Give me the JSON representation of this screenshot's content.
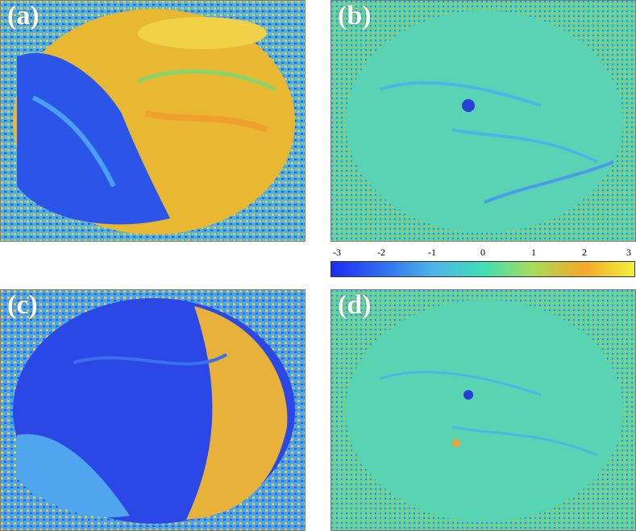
{
  "panels": {
    "a": {
      "label": "(a)",
      "theme": "mixed-high"
    },
    "b": {
      "label": "(b)",
      "theme": "flat"
    },
    "c": {
      "label": "(c)",
      "theme": "mixed-low"
    },
    "d": {
      "label": "(d)",
      "theme": "flat"
    }
  },
  "colorbar": {
    "min": -3,
    "max": 3,
    "ticks": [
      "-3",
      "-2",
      "-1",
      "0",
      "1",
      "2",
      "3"
    ],
    "colormap": [
      "#1d2cf0",
      "#2f6cf2",
      "#4fb2ea",
      "#40dfb6",
      "#a7dc58",
      "#f5a72b",
      "#f1f23a"
    ]
  }
}
